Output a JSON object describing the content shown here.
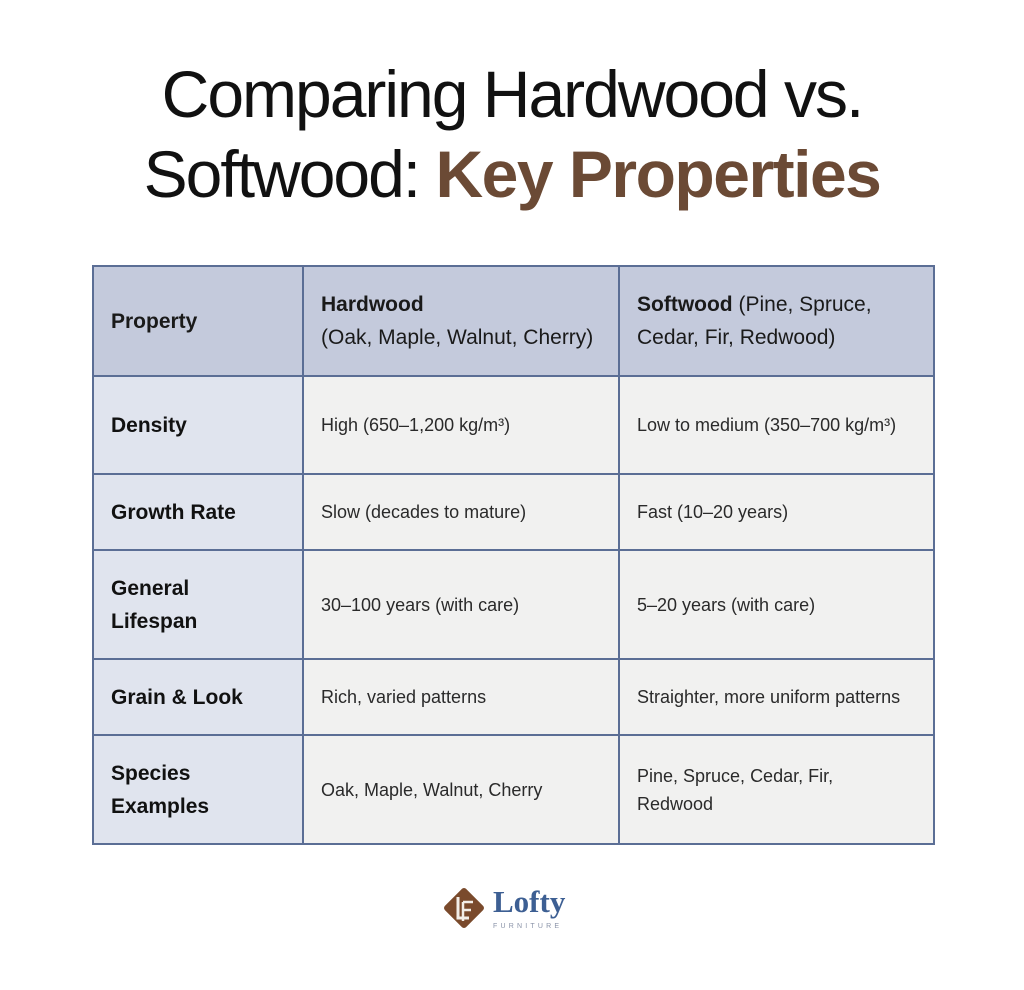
{
  "title": {
    "line1": "Comparing Hardwood vs.",
    "line2_plain": "Softwood: ",
    "line2_accent": "Key Properties"
  },
  "colors": {
    "accent": "#6b4a35",
    "border": "#5b6e95",
    "header_bg": "#c4cadc",
    "property_bg": "#e0e4ee",
    "brand_blue": "#3d5f93"
  },
  "table": {
    "headers": [
      {
        "bold": "Property",
        "rest": ""
      },
      {
        "bold": "Hardwood",
        "rest": "(Oak, Maple, Walnut, Cherry)"
      },
      {
        "bold": "Softwood",
        "rest": " (Pine, Spruce, Cedar, Fir, Redwood)"
      }
    ],
    "rows": [
      {
        "property": "Density",
        "hardwood": "High (650–1,200 kg/m³)",
        "softwood": "Low to medium (350–700 kg/m³)"
      },
      {
        "property": "Growth Rate",
        "hardwood": "Slow (decades to mature)",
        "softwood": "Fast (10–20 years)"
      },
      {
        "property": "General Lifespan",
        "hardwood": "30–100 years (with care)",
        "softwood": "5–20 years (with care)"
      },
      {
        "property": "Grain & Look",
        "hardwood": "Rich, varied patterns",
        "softwood": "Straighter, more uniform patterns"
      },
      {
        "property": "Species Examples",
        "hardwood": "Oak, Maple, Walnut, Cherry",
        "softwood": "Pine, Spruce, Cedar, Fir, Redwood"
      }
    ]
  },
  "logo": {
    "name": "Lofty",
    "sub": "FURNITURE",
    "icon": "lf-monogram-diamond-icon"
  }
}
